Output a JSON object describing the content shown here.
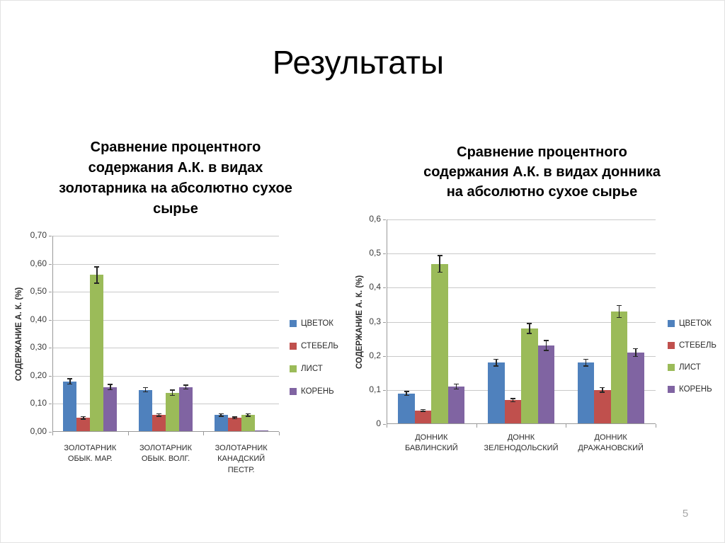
{
  "slide": {
    "title": "Результаты",
    "page_number": "5"
  },
  "colors": {
    "gridline": "#c9c9c9",
    "axis": "#999999",
    "error_bar": "#262626",
    "title_text": "#000000",
    "page_number_text": "#a6a6a6"
  },
  "chart_data": [
    {
      "type": "bar",
      "title": "Сравнение процентного\nсодержания А.К. в видах\nзолотарника  на абсолютно сухое\nсырье",
      "ylabel": "СОДЕРЖАНИЕ А. К. (%)",
      "xlabel": "",
      "ylim": [
        0,
        0.7
      ],
      "yticks": [
        0,
        0.1,
        0.2,
        0.3,
        0.4,
        0.5,
        0.6,
        0.7
      ],
      "ytick_labels": [
        "0,00",
        "0,10",
        "0,20",
        "0,30",
        "0,40",
        "0,50",
        "0,60",
        "0,70"
      ],
      "grid": true,
      "legend_position": "right",
      "error_bars": true,
      "categories": [
        "ЗОЛОТАРНИК ОБЫК. МАР.",
        "ЗОЛОТАРНИК ОБЫК. ВОЛГ.",
        "ЗОЛОТАРНИК КАНАДСКИЙ ПЕСТР."
      ],
      "series": [
        {
          "name": "ЦВЕТОК",
          "color": "#4F81BD",
          "values": [
            0.18,
            0.15,
            0.06
          ],
          "errors": [
            0.01,
            0.008,
            0.005
          ]
        },
        {
          "name": "СТЕБЕЛЬ",
          "color": "#C0504D",
          "values": [
            0.05,
            0.06,
            0.05
          ],
          "errors": [
            0.005,
            0.005,
            0.004
          ]
        },
        {
          "name": "ЛИСТ",
          "color": "#9BBB59",
          "values": [
            0.56,
            0.14,
            0.06
          ],
          "errors": [
            0.03,
            0.01,
            0.005
          ]
        },
        {
          "name": "КОРЕНЬ",
          "color": "#8064A2",
          "values": [
            0.16,
            0.16,
            0.005
          ],
          "errors": [
            0.01,
            0.008,
            0
          ]
        }
      ]
    },
    {
      "type": "bar",
      "title": "Сравнение процентного\nсодержания А.К. в видах донника\nна абсолютно сухое сырье",
      "ylabel": "СОДЕРЖАНИЕ А. К. (%)",
      "xlabel": "",
      "ylim": [
        0,
        0.6
      ],
      "yticks": [
        0,
        0.1,
        0.2,
        0.3,
        0.4,
        0.5,
        0.6
      ],
      "ytick_labels": [
        "0",
        "0,1",
        "0,2",
        "0,3",
        "0,4",
        "0,5",
        "0,6"
      ],
      "grid": true,
      "legend_position": "right",
      "error_bars": true,
      "categories": [
        "ДОННИК БАВЛИНСКИЙ",
        "ДОННК ЗЕЛЕНОДОЛЬСКИЙ",
        "ДОННИК ДРАЖАНОВСКИЙ"
      ],
      "series": [
        {
          "name": "ЦВЕТОК",
          "color": "#4F81BD",
          "values": [
            0.09,
            0.18,
            0.18
          ],
          "errors": [
            0.006,
            0.01,
            0.01
          ]
        },
        {
          "name": "СТЕБЕЛЬ",
          "color": "#C0504D",
          "values": [
            0.04,
            0.07,
            0.1
          ],
          "errors": [
            0.003,
            0.005,
            0.007
          ]
        },
        {
          "name": "ЛИСТ",
          "color": "#9BBB59",
          "values": [
            0.47,
            0.28,
            0.33
          ],
          "errors": [
            0.025,
            0.015,
            0.018
          ]
        },
        {
          "name": "КОРЕНЬ",
          "color": "#8064A2",
          "values": [
            0.11,
            0.23,
            0.21
          ],
          "errors": [
            0.008,
            0.015,
            0.012
          ]
        }
      ]
    }
  ]
}
